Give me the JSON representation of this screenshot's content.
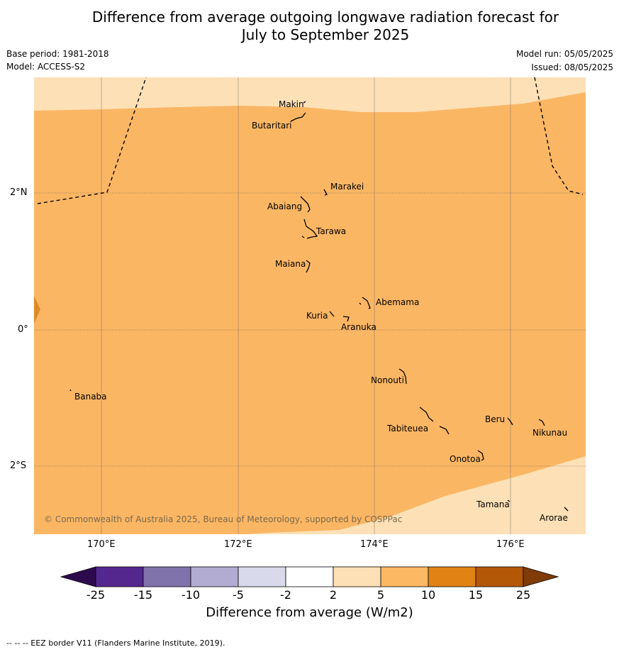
{
  "title_line1": "Difference from average outgoing longwave radiation forecast for",
  "title_line2": "July to September 2025",
  "base_period": "Base period: 1981-2018",
  "model": "Model: ACCESS-S2",
  "model_run": "Model run: 05/05/2025",
  "issued": "Issued: 08/05/2025",
  "copyright": "© Commonwealth of Australia 2025, Bureau of Meteorology, supported by COSPPac",
  "lat_ticks": [
    "2°N",
    "0°",
    "2°S"
  ],
  "lon_ticks": [
    "170°E",
    "172°E",
    "174°E",
    "176°E"
  ],
  "places": [
    "Makin",
    "Butaritari",
    "Marakei",
    "Abaiang",
    "Tarawa",
    "Maiana",
    "Abemama",
    "Kuria",
    "Aranuka",
    "Nonouti",
    "Banaba",
    "Tabiteuea",
    "Beru",
    "Nikunau",
    "Onotoa",
    "Tamana",
    "Arorae"
  ],
  "legend": {
    "ticks": [
      "-25",
      "-15",
      "-10",
      "-5",
      "-2",
      "2",
      "5",
      "10",
      "15",
      "25"
    ],
    "colors": [
      "#2d0a4e",
      "#54278f",
      "#8073ac",
      "#b2abd2",
      "#d8daeb",
      "#ffffff",
      "#fee0b6",
      "#fdb863",
      "#e08214",
      "#b35806",
      "#7f3b08"
    ],
    "label": "Difference from average (W/m2)"
  },
  "footnote": "--  --  -- EEZ border V11 (Flanders Marine Institute, 2019)."
}
